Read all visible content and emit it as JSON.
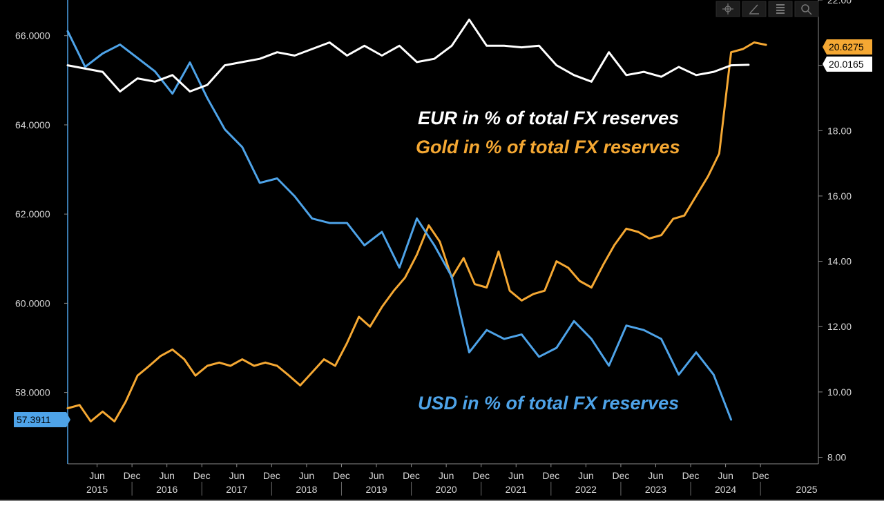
{
  "chart_data": {
    "type": "line",
    "title": "",
    "xlabel": "",
    "ylabel": "",
    "x_tick_months": [
      "Jun",
      "Dec",
      "Jun",
      "Dec",
      "Jun",
      "Dec",
      "Jun",
      "Dec",
      "Jun",
      "Dec",
      "Jun",
      "Dec",
      "Jun",
      "Dec",
      "Jun",
      "Dec",
      "Jun",
      "Dec",
      "Jun",
      "Dec"
    ],
    "x_tick_years": [
      "2015",
      "2016",
      "2017",
      "2018",
      "2019",
      "2020",
      "2021",
      "2022",
      "2023",
      "2024",
      "2025"
    ],
    "x_range": [
      2015.0,
      2025.75
    ],
    "y_left": {
      "range": [
        56.4,
        66.8
      ],
      "ticks": [
        "58.0000",
        "60.0000",
        "62.0000",
        "64.0000",
        "66.0000"
      ]
    },
    "y_right": {
      "range": [
        7.8,
        22.0
      ],
      "ticks": [
        "8.00",
        "10.00",
        "12.00",
        "14.00",
        "16.00",
        "18.00",
        "20.00",
        "22.00"
      ]
    },
    "grid": false,
    "background": "#000000",
    "annotations": [
      {
        "text": "EUR in % of total FX reserves",
        "color": "#ffffff"
      },
      {
        "text": "Gold in % of total FX reserves",
        "color": "#f5a833"
      },
      {
        "text": "USD in % of total FX reserves",
        "color": "#4ea3e8"
      }
    ],
    "last_value_labels": [
      {
        "series": "Gold",
        "text": "20.6275",
        "bg": "#f5a833",
        "fg": "#000000"
      },
      {
        "series": "EUR",
        "text": "20.0165",
        "bg": "#ffffff",
        "fg": "#000000"
      },
      {
        "series": "USD",
        "text": "57.3911",
        "bg": "#4ea3e8",
        "fg": "#000000"
      }
    ],
    "series": [
      {
        "name": "USD",
        "axis": "left",
        "color": "#4ea3e8",
        "x": [
          2015.0,
          2015.25,
          2015.5,
          2015.75,
          2016.0,
          2016.25,
          2016.5,
          2016.75,
          2017.0,
          2017.25,
          2017.5,
          2017.75,
          2018.0,
          2018.25,
          2018.5,
          2018.75,
          2019.0,
          2019.25,
          2019.5,
          2019.75,
          2020.0,
          2020.25,
          2020.5,
          2020.75,
          2021.0,
          2021.25,
          2021.5,
          2021.75,
          2022.0,
          2022.25,
          2022.5,
          2022.75,
          2023.0,
          2023.25,
          2023.5,
          2023.75,
          2024.0,
          2024.25,
          2024.5
        ],
        "y": [
          66.1,
          65.3,
          65.6,
          65.8,
          65.5,
          65.2,
          64.7,
          65.4,
          64.6,
          63.9,
          63.5,
          62.7,
          62.8,
          62.4,
          61.9,
          61.8,
          61.8,
          61.3,
          61.6,
          60.8,
          61.9,
          61.3,
          60.6,
          58.9,
          59.4,
          59.2,
          59.3,
          58.8,
          59.0,
          59.6,
          59.2,
          58.6,
          59.5,
          59.4,
          59.2,
          58.4,
          58.9,
          58.4,
          57.39
        ]
      },
      {
        "name": "EUR",
        "axis": "right",
        "color": "#ffffff",
        "x": [
          2015.0,
          2015.25,
          2015.5,
          2015.75,
          2016.0,
          2016.25,
          2016.5,
          2016.75,
          2017.0,
          2017.25,
          2017.5,
          2017.75,
          2018.0,
          2018.25,
          2018.5,
          2018.75,
          2019.0,
          2019.25,
          2019.5,
          2019.75,
          2020.0,
          2020.25,
          2020.5,
          2020.75,
          2021.0,
          2021.25,
          2021.5,
          2021.75,
          2022.0,
          2022.25,
          2022.5,
          2022.75,
          2023.0,
          2023.25,
          2023.5,
          2023.75,
          2024.0,
          2024.25,
          2024.5,
          2024.75
        ],
        "y": [
          20.0,
          19.9,
          19.8,
          19.2,
          19.6,
          19.5,
          19.7,
          19.2,
          19.4,
          20.0,
          20.1,
          20.2,
          20.4,
          20.3,
          20.5,
          20.7,
          20.3,
          20.6,
          20.3,
          20.6,
          20.1,
          20.2,
          20.6,
          21.4,
          20.6,
          20.6,
          20.55,
          20.6,
          20.0,
          19.7,
          19.5,
          20.4,
          19.7,
          19.8,
          19.65,
          19.95,
          19.7,
          19.8,
          20.0,
          20.0165
        ]
      },
      {
        "name": "Gold",
        "axis": "right",
        "color": "#f5a833",
        "x": [
          2015.0,
          2015.17,
          2015.33,
          2015.5,
          2015.67,
          2015.83,
          2016.0,
          2016.17,
          2016.33,
          2016.5,
          2016.67,
          2016.83,
          2017.0,
          2017.17,
          2017.33,
          2017.5,
          2017.67,
          2017.83,
          2018.0,
          2018.17,
          2018.33,
          2018.5,
          2018.67,
          2018.83,
          2019.0,
          2019.17,
          2019.33,
          2019.5,
          2019.67,
          2019.83,
          2020.0,
          2020.17,
          2020.33,
          2020.5,
          2020.67,
          2020.83,
          2021.0,
          2021.17,
          2021.33,
          2021.5,
          2021.67,
          2021.83,
          2022.0,
          2022.17,
          2022.33,
          2022.5,
          2022.67,
          2022.83,
          2023.0,
          2023.17,
          2023.33,
          2023.5,
          2023.67,
          2023.83,
          2024.0,
          2024.17,
          2024.33,
          2024.5,
          2024.67,
          2024.83,
          2025.0
        ],
        "y": [
          9.5,
          9.6,
          9.1,
          9.4,
          9.1,
          9.7,
          10.5,
          10.8,
          11.1,
          11.3,
          11.0,
          10.5,
          10.8,
          10.9,
          10.8,
          11.0,
          10.8,
          10.9,
          10.8,
          10.5,
          10.2,
          10.6,
          11.0,
          10.8,
          11.5,
          12.3,
          12.0,
          12.6,
          13.1,
          13.5,
          14.2,
          15.1,
          14.6,
          13.5,
          14.1,
          13.3,
          13.2,
          14.3,
          13.1,
          12.8,
          13.0,
          13.1,
          14.0,
          13.8,
          13.4,
          13.2,
          13.9,
          14.5,
          15.0,
          14.9,
          14.7,
          14.8,
          15.3,
          15.4,
          16.0,
          16.6,
          17.3,
          20.4,
          20.5,
          20.7,
          20.6275
        ]
      }
    ]
  },
  "toolbar": {
    "icons": [
      "crosshair-icon",
      "draw-icon",
      "table-icon",
      "zoom-icon"
    ]
  }
}
